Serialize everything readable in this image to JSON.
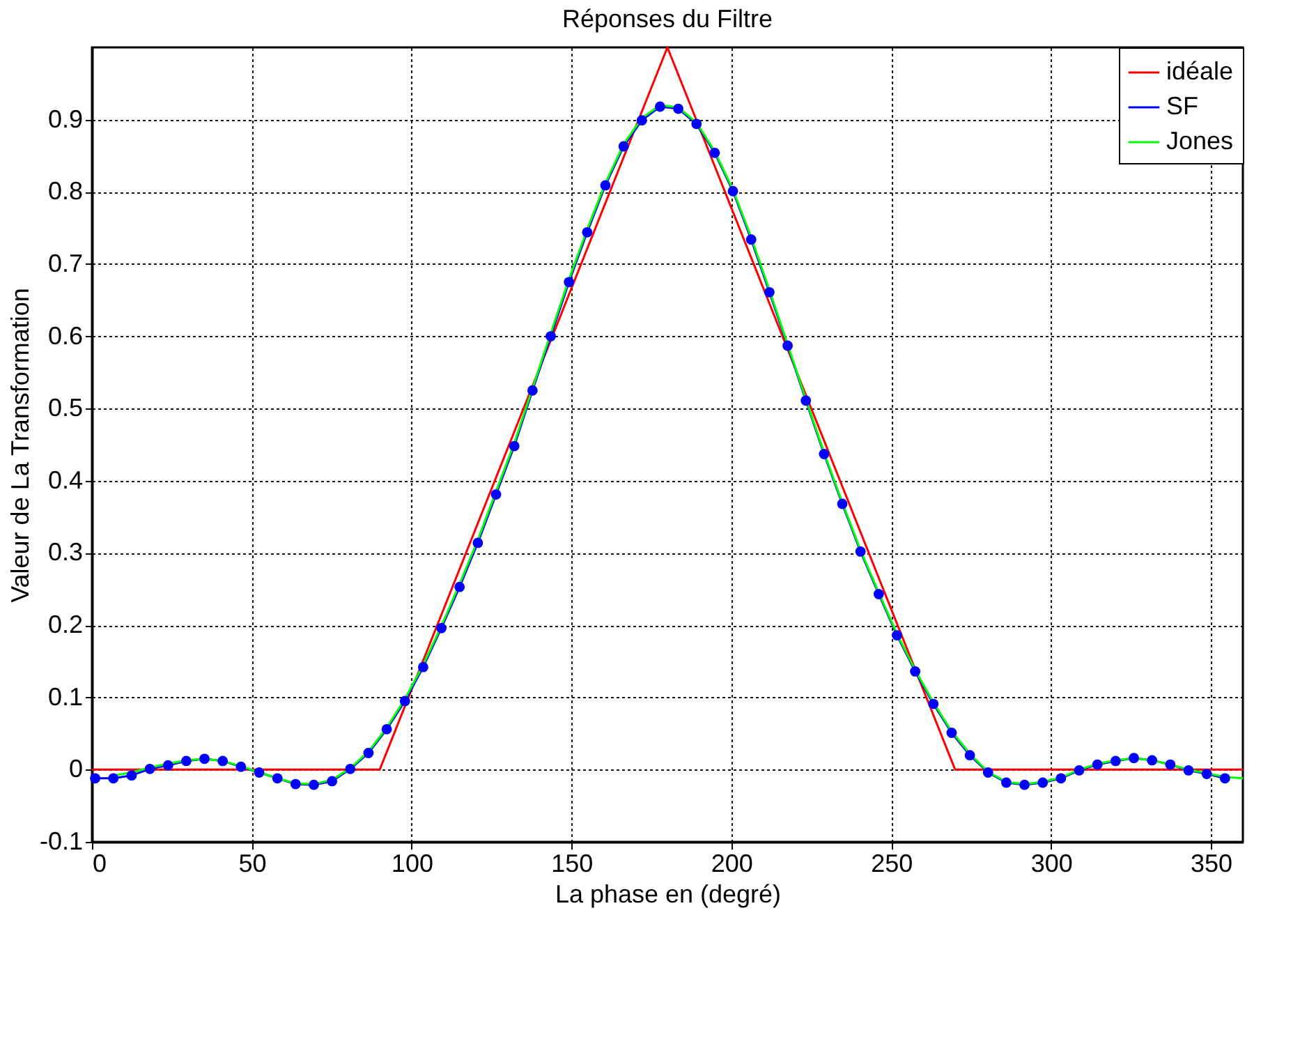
{
  "chart_data": {
    "type": "line",
    "title": "Réponses du Filtre",
    "xlabel": "La phase en (degré)",
    "ylabel": "Valeur de La Transformation",
    "xlim": [
      0,
      360
    ],
    "xticks": [
      0,
      50,
      100,
      150,
      200,
      250,
      300,
      350
    ],
    "ylim": [
      -0.1,
      1
    ],
    "yticks": [
      -0.1,
      0,
      0.1,
      0.2,
      0.3,
      0.4,
      0.5,
      0.6,
      0.7,
      0.8,
      0.9
    ],
    "grid": true,
    "legend": "top right",
    "series": [
      {
        "name": "idéale",
        "color": "#ff0000",
        "marker": "none",
        "x": [
          0,
          90,
          180,
          270,
          360
        ],
        "values": [
          0,
          0,
          1,
          0,
          0
        ]
      },
      {
        "name": "SF",
        "color": "#0000ff",
        "marker": "circle",
        "x": [
          1,
          6.7,
          12.4,
          18.1,
          23.8,
          29.5,
          35.2,
          40.9,
          46.6,
          52.3,
          58,
          63.7,
          69.4,
          75.1,
          80.8,
          86.5,
          92.2,
          97.9,
          103.6,
          109.3,
          115,
          120.7,
          126.4,
          132.1,
          137.8,
          143.5,
          149.2,
          154.9,
          160.6,
          166.3,
          172,
          177.7,
          183.4,
          189.1,
          194.8,
          200.5,
          206.2,
          211.9,
          217.6,
          223.3,
          229,
          234.7,
          240.4,
          246.1,
          251.8,
          257.5,
          263.2,
          268.9,
          274.6,
          280.3,
          286,
          291.7,
          297.4,
          303.1,
          308.8,
          314.5,
          320.2,
          325.9,
          331.6,
          337.3,
          343,
          348.7,
          354.4
        ],
        "values": [
          -0.012,
          -0.012,
          -0.008,
          0.001,
          0.006,
          0.012,
          0.015,
          0.012,
          0.004,
          -0.004,
          -0.012,
          -0.02,
          -0.021,
          -0.016,
          0.001,
          0.023,
          0.056,
          0.095,
          0.142,
          0.196,
          0.253,
          0.314,
          0.381,
          0.448,
          0.525,
          0.6,
          0.675,
          0.744,
          0.809,
          0.863,
          0.899,
          0.918,
          0.915,
          0.894,
          0.854,
          0.801,
          0.734,
          0.661,
          0.587,
          0.511,
          0.437,
          0.368,
          0.302,
          0.243,
          0.186,
          0.136,
          0.091,
          0.051,
          0.02,
          -0.004,
          -0.018,
          -0.021,
          -0.018,
          -0.012,
          -0.001,
          0.007,
          0.012,
          0.016,
          0.013,
          0.007,
          -0.001,
          -0.006,
          -0.012
        ]
      },
      {
        "name": "Jones",
        "color": "#00ff00",
        "marker": "none",
        "x": [
          6.7,
          12.4,
          18.1,
          23.8,
          29.5,
          35.2,
          40.9,
          46.6,
          52.3,
          58,
          63.7,
          69.4,
          75.1,
          80.8,
          86.5,
          92.2,
          97.9,
          103.6,
          109.3,
          115,
          120.7,
          126.4,
          132.1,
          137.8,
          143.5,
          149.2,
          154.9,
          160.6,
          166.3,
          172,
          177.7,
          183.4,
          189.1,
          194.8,
          200.5,
          206.2,
          211.9,
          217.6,
          223.3,
          229,
          234.7,
          240.4,
          246.1,
          251.8,
          257.5,
          263.2,
          268.9,
          274.6,
          280.3,
          286,
          291.7,
          297.4,
          303.1,
          308.8,
          314.5,
          320.2,
          325.9,
          331.6,
          337.3,
          343,
          348.7,
          354.4,
          360
        ],
        "values": [
          -0.008,
          -0.004,
          0.003,
          0.008,
          0.013,
          0.015,
          0.012,
          0.005,
          -0.004,
          -0.012,
          -0.019,
          -0.02,
          -0.014,
          0.002,
          0.025,
          0.058,
          0.098,
          0.145,
          0.199,
          0.257,
          0.318,
          0.385,
          0.452,
          0.528,
          0.604,
          0.679,
          0.748,
          0.812,
          0.866,
          0.902,
          0.92,
          0.917,
          0.896,
          0.856,
          0.803,
          0.737,
          0.664,
          0.589,
          0.513,
          0.439,
          0.37,
          0.304,
          0.245,
          0.188,
          0.138,
          0.093,
          0.053,
          0.022,
          -0.003,
          -0.017,
          -0.02,
          -0.017,
          -0.011,
          0,
          0.008,
          0.013,
          0.016,
          0.013,
          0.007,
          0,
          -0.005,
          -0.01,
          -0.012
        ]
      }
    ]
  }
}
